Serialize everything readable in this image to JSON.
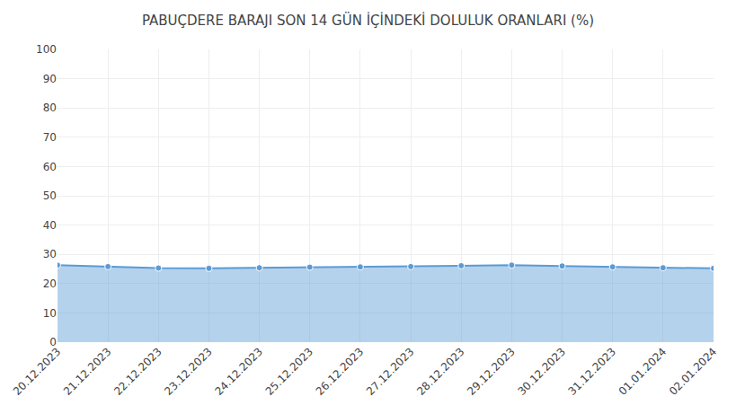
{
  "chart_data": {
    "type": "area",
    "title": "PABUÇDERE BARAJI SON 14 GÜN İÇİNDEKİ DOLULUK ORANLARI (%)",
    "categories": [
      "20.12.2023",
      "21.12.2023",
      "22.12.2023",
      "23.12.2023",
      "24.12.2023",
      "25.12.2023",
      "26.12.2023",
      "27.12.2023",
      "28.12.2023",
      "29.12.2023",
      "30.12.2023",
      "31.12.2023",
      "01.01.2024",
      "02.01.2024"
    ],
    "values": [
      26.3,
      25.8,
      25.3,
      25.2,
      25.4,
      25.6,
      25.7,
      25.8,
      26.1,
      26.3,
      26.0,
      25.7,
      25.4,
      25.2
    ],
    "color": "#5b9bd5",
    "marker": "circle",
    "ylim": [
      0,
      100
    ],
    "yticks": [
      0,
      10,
      20,
      30,
      40,
      50,
      60,
      70,
      80,
      90,
      100
    ],
    "grid": true
  }
}
